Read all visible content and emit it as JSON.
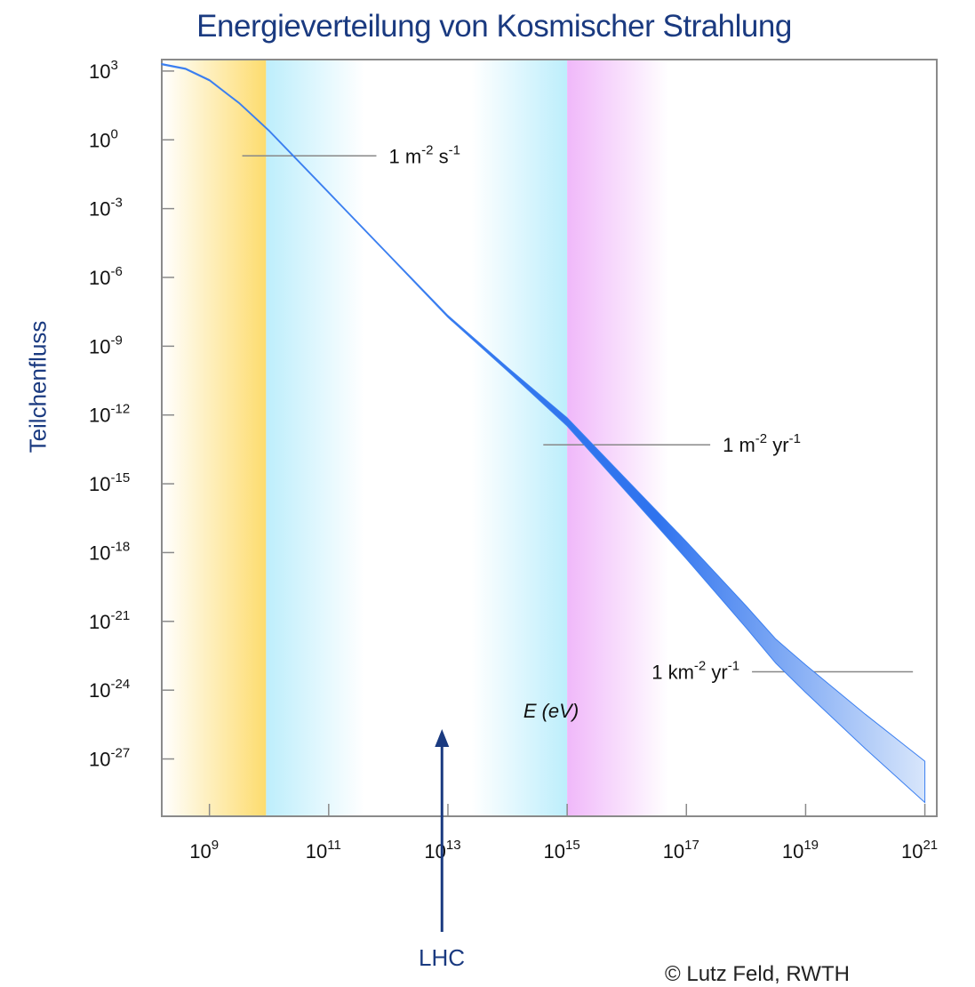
{
  "title": "Energieverteilung von Kosmischer Strahlung",
  "ylabel": "Teilchenfluss",
  "xlabel": "E (eV)",
  "lhc_label": "LHC",
  "copyright": "© Lutz Feld, RWTH",
  "colors": {
    "band_yellow": "#fddc6e",
    "band_cyan": "#bdeefc",
    "band_magenta": "#f0b8fa",
    "spectrum": "#3b7ff0",
    "axis_text": "#111111",
    "blue_text": "#1a3a80"
  },
  "chart_data": {
    "type": "line",
    "title": "Energieverteilung von Kosmischer Strahlung",
    "xlabel": "E (eV)",
    "ylabel": "Teilchenfluss",
    "x_scale": "log",
    "y_scale": "log",
    "xlim_exp": [
      8.2,
      21.2
    ],
    "ylim_exp": [
      -29.5,
      3.5
    ],
    "x_ticks": [
      {
        "base": "10",
        "exp": "9",
        "value_exp": 9
      },
      {
        "base": "10",
        "exp": "11",
        "value_exp": 11
      },
      {
        "base": "10",
        "exp": "13",
        "value_exp": 13
      },
      {
        "base": "10",
        "exp": "15",
        "value_exp": 15
      },
      {
        "base": "10",
        "exp": "17",
        "value_exp": 17
      },
      {
        "base": "10",
        "exp": "19",
        "value_exp": 19
      },
      {
        "base": "10",
        "exp": "21",
        "value_exp": 21
      }
    ],
    "y_ticks": [
      {
        "base": "10",
        "exp": "3",
        "value_exp": 3
      },
      {
        "base": "10",
        "exp": "0",
        "value_exp": 0
      },
      {
        "base": "10",
        "exp": "-3",
        "value_exp": -3
      },
      {
        "base": "10",
        "exp": "-6",
        "value_exp": -6
      },
      {
        "base": "10",
        "exp": "-9",
        "value_exp": -9
      },
      {
        "base": "10",
        "exp": "-12",
        "value_exp": -12
      },
      {
        "base": "10",
        "exp": "-15",
        "value_exp": -15
      },
      {
        "base": "10",
        "exp": "-18",
        "value_exp": -18
      },
      {
        "base": "10",
        "exp": "-21",
        "value_exp": -21
      },
      {
        "base": "10",
        "exp": "-24",
        "value_exp": -24
      },
      {
        "base": "10",
        "exp": "-27",
        "value_exp": -27
      }
    ],
    "bands": [
      {
        "name": "yellow",
        "from_exp": 8.2,
        "to_exp": 9.95,
        "color": "#fddc6e"
      },
      {
        "name": "cyan-left",
        "from_exp": 9.95,
        "to_exp": 11.6,
        "color": "#bdeefc"
      },
      {
        "name": "cyan-right",
        "from_exp": 13.4,
        "to_exp": 15.0,
        "color": "#bdeefc"
      },
      {
        "name": "magenta",
        "from_exp": 15.0,
        "to_exp": 16.7,
        "color": "#f0b8fa"
      }
    ],
    "spectrum": [
      {
        "x_exp": 8.2,
        "y_exp": 3.3,
        "dy": 0.05
      },
      {
        "x_exp": 8.6,
        "y_exp": 3.1,
        "dy": 0.05
      },
      {
        "x_exp": 9.0,
        "y_exp": 2.6,
        "dy": 0.05
      },
      {
        "x_exp": 9.5,
        "y_exp": 1.6,
        "dy": 0.05
      },
      {
        "x_exp": 10.0,
        "y_exp": 0.4,
        "dy": 0.05
      },
      {
        "x_exp": 11.0,
        "y_exp": -2.3,
        "dy": 0.05
      },
      {
        "x_exp": 12.0,
        "y_exp": -5.0,
        "dy": 0.05
      },
      {
        "x_exp": 13.0,
        "y_exp": -7.7,
        "dy": 0.08
      },
      {
        "x_exp": 14.0,
        "y_exp": -10.0,
        "dy": 0.15
      },
      {
        "x_exp": 15.0,
        "y_exp": -12.3,
        "dy": 0.35
      },
      {
        "x_exp": 16.0,
        "y_exp": -15.1,
        "dy": 0.55
      },
      {
        "x_exp": 17.0,
        "y_exp": -17.9,
        "dy": 0.75
      },
      {
        "x_exp": 18.0,
        "y_exp": -20.8,
        "dy": 0.95
      },
      {
        "x_exp": 18.5,
        "y_exp": -22.3,
        "dy": 1.05
      },
      {
        "x_exp": 19.0,
        "y_exp": -23.5,
        "dy": 1.2
      },
      {
        "x_exp": 20.0,
        "y_exp": -25.8,
        "dy": 1.5
      },
      {
        "x_exp": 21.0,
        "y_exp": -28.0,
        "dy": 1.8
      }
    ],
    "annotations": [
      {
        "label": "1 m",
        "sup1": "-2",
        "mid": " s",
        "sup2": "-1",
        "line_from_exp": 9.55,
        "line_to_exp": 11.8,
        "y_exp": -0.7,
        "label_side": "right"
      },
      {
        "label": "1 m",
        "sup1": "-2",
        "mid": " yr",
        "sup2": "-1",
        "line_from_exp": 14.6,
        "line_to_exp": 17.4,
        "y_exp": -13.3,
        "label_side": "right"
      },
      {
        "label": "1 km",
        "sup1": "-2",
        "mid": " yr",
        "sup2": "-1",
        "line_from_exp": 18.1,
        "line_to_exp": 20.8,
        "y_exp": -23.2,
        "label_side": "left"
      }
    ],
    "lhc_marker_exp": 12.9
  }
}
